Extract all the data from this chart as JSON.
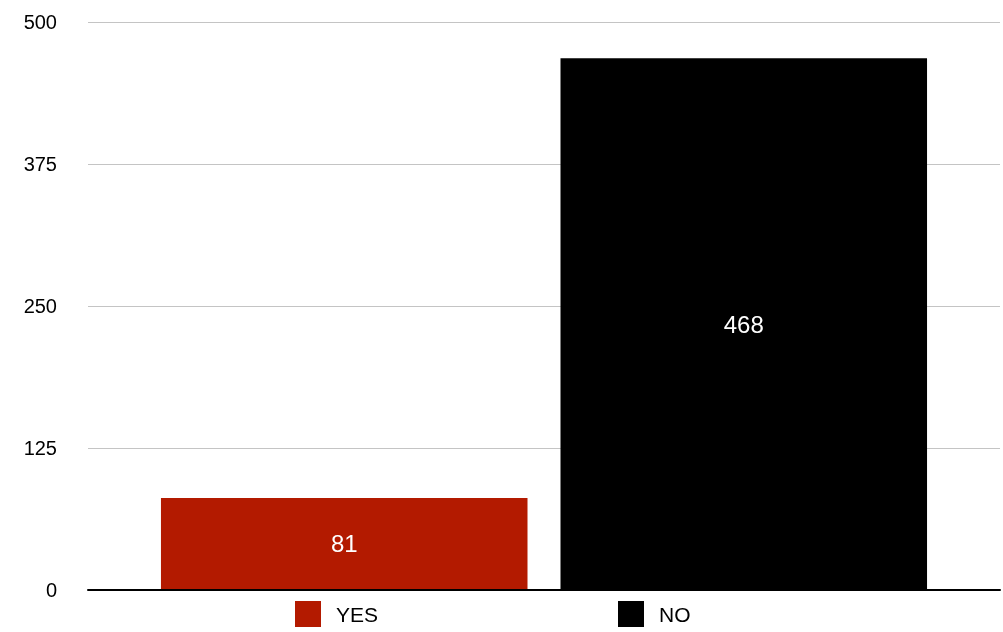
{
  "chart_data": {
    "type": "bar",
    "categories": [
      null
    ],
    "series": [
      {
        "name": "YES",
        "color": "#b31a00",
        "values": [
          81
        ]
      },
      {
        "name": "NO",
        "color": "#000000",
        "values": [
          468
        ]
      }
    ],
    "ylim": [
      0,
      500
    ],
    "yticks": [
      0,
      125,
      250,
      375,
      500
    ],
    "grid": "y",
    "legend": "bottom",
    "data_labels": true
  }
}
